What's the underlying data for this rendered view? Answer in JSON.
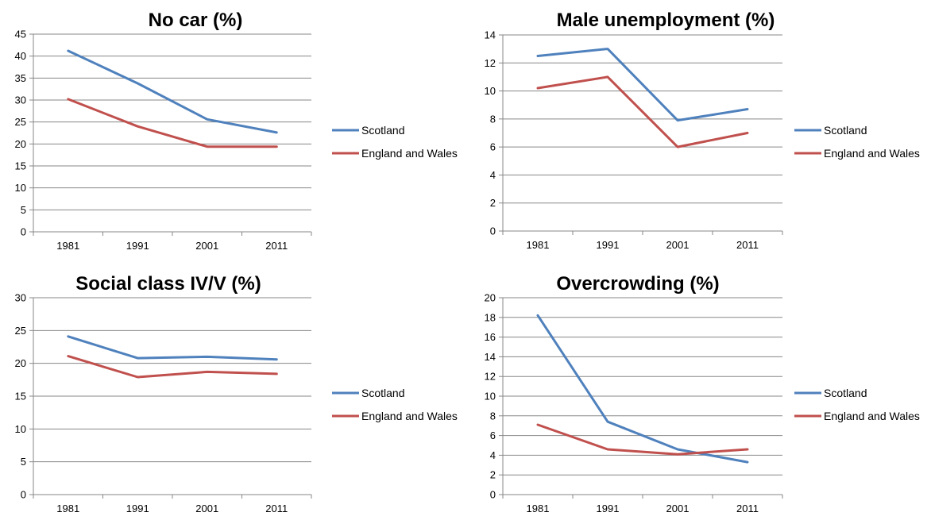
{
  "series_colors": {
    "Scotland": "#4F81BD",
    "England and Wales": "#C0504D"
  },
  "chart_data": [
    {
      "type": "line",
      "title": "No car (%)",
      "xlabel": "",
      "ylabel": "",
      "categories": [
        "1981",
        "1991",
        "2001",
        "2011"
      ],
      "ylim": [
        0,
        45
      ],
      "ystep": 5,
      "grid": true,
      "legend": "right",
      "series": [
        {
          "name": "Scotland",
          "values": [
            41.2,
            33.8,
            25.6,
            22.6
          ]
        },
        {
          "name": "England and Wales",
          "values": [
            30.2,
            24.0,
            19.4,
            19.4
          ]
        }
      ]
    },
    {
      "type": "line",
      "title": "Male unemployment (%)",
      "xlabel": "",
      "ylabel": "",
      "categories": [
        "1981",
        "1991",
        "2001",
        "2011"
      ],
      "ylim": [
        0,
        14
      ],
      "ystep": 2,
      "grid": true,
      "legend": "right",
      "series": [
        {
          "name": "Scotland",
          "values": [
            12.5,
            13.0,
            7.9,
            8.7
          ]
        },
        {
          "name": "England and Wales",
          "values": [
            10.2,
            11.0,
            6.0,
            7.0
          ]
        }
      ]
    },
    {
      "type": "line",
      "title": "Social class IV/V (%)",
      "xlabel": "",
      "ylabel": "",
      "categories": [
        "1981",
        "1991",
        "2001",
        "2011"
      ],
      "ylim": [
        0,
        30
      ],
      "ystep": 5,
      "grid": true,
      "legend": "right",
      "series": [
        {
          "name": "Scotland",
          "values": [
            24.1,
            20.8,
            21.0,
            20.6
          ]
        },
        {
          "name": "England and Wales",
          "values": [
            21.1,
            17.9,
            18.7,
            18.4
          ]
        }
      ]
    },
    {
      "type": "line",
      "title": "Overcrowding (%)",
      "xlabel": "",
      "ylabel": "",
      "categories": [
        "1981",
        "1991",
        "2001",
        "2011"
      ],
      "ylim": [
        0,
        20
      ],
      "ystep": 2,
      "grid": true,
      "legend": "right",
      "series": [
        {
          "name": "Scotland",
          "values": [
            18.2,
            7.4,
            4.6,
            3.3
          ]
        },
        {
          "name": "England and Wales",
          "values": [
            7.1,
            4.6,
            4.1,
            4.6
          ]
        }
      ]
    }
  ]
}
